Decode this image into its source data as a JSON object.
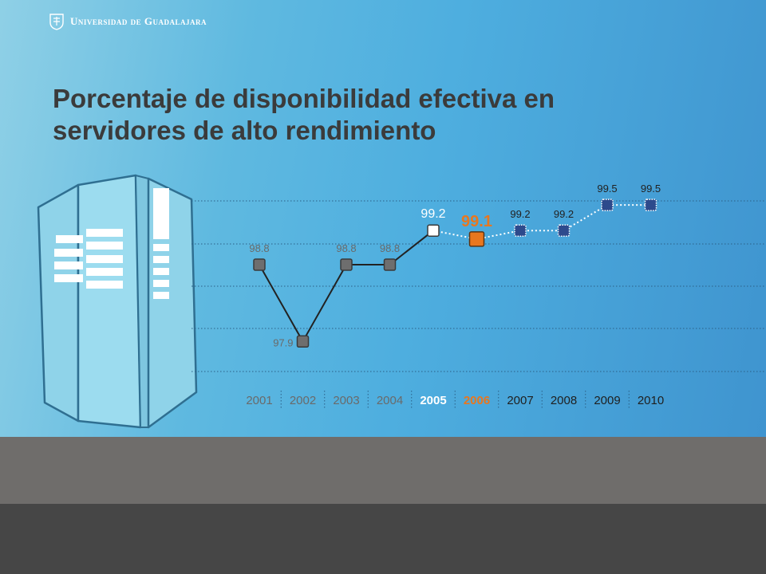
{
  "header": {
    "logo_text": "Universidad de Guadalajara"
  },
  "title": "Porcentaje de disponibilidad efectiva en servidores de alto rendimiento",
  "chart_data": {
    "type": "line",
    "title": "Porcentaje de disponibilidad efectiva en servidores de alto rendimiento",
    "xlabel": "",
    "ylabel": "",
    "categories": [
      "2001",
      "2002",
      "2003",
      "2004",
      "2005",
      "2006",
      "2007",
      "2008",
      "2009",
      "2010"
    ],
    "value_labels": [
      "98.8",
      "97.9",
      "98.8",
      "98.8",
      "99.2",
      "99.1",
      "99.2",
      "99.2",
      "99.5",
      "99.5"
    ],
    "values": [
      98.8,
      97.9,
      98.8,
      98.8,
      99.2,
      99.1,
      99.2,
      99.2,
      99.5,
      99.5
    ],
    "highlight": "2006",
    "grid": true,
    "legend": "none",
    "colors": {
      "historical_marker": "#6e6e6e",
      "current_marker": "#ffffff",
      "highlight_marker": "#e8771f",
      "projection_marker": "#2d4a8c",
      "historical_line": "#222222",
      "projection_line": "#ffffff",
      "historical_text": "#6a6a6a",
      "highlight_text": "#e8771f",
      "current_text": "#ffffff",
      "projection_text": "#222222"
    }
  }
}
